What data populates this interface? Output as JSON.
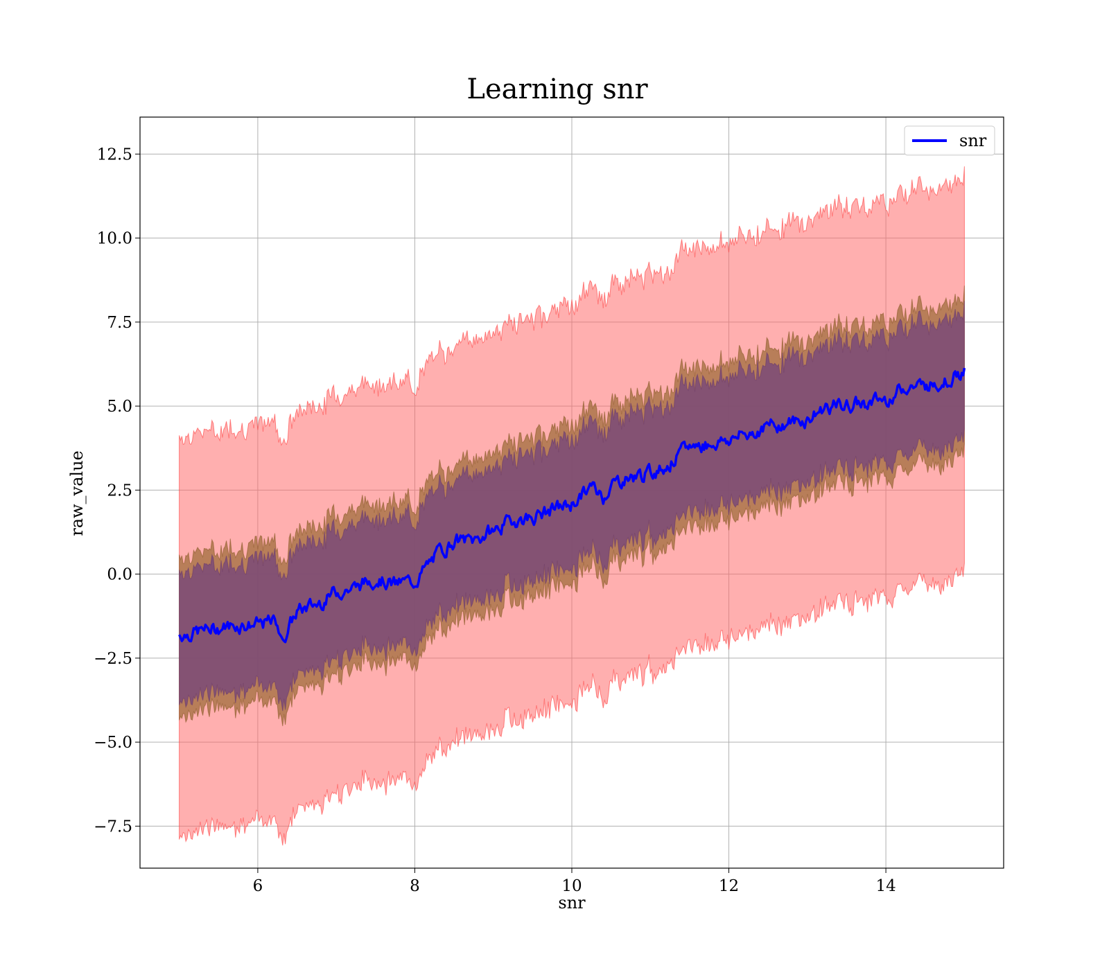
{
  "chart_data": {
    "type": "line",
    "title": "Learning snr",
    "xlabel": "snr",
    "ylabel": "raw_value",
    "xlim": [
      4.5,
      15.5
    ],
    "ylim": [
      -8.75,
      13.6
    ],
    "xticks": [
      6,
      8,
      10,
      12,
      14
    ],
    "yticks": [
      -7.5,
      -5.0,
      -2.5,
      0.0,
      2.5,
      5.0,
      7.5,
      10.0,
      12.5
    ],
    "xtick_labels": [
      "6",
      "8",
      "10",
      "12",
      "14"
    ],
    "ytick_labels": [
      "−7.5",
      "−5.0",
      "−2.5",
      "0.0",
      "2.5",
      "5.0",
      "7.5",
      "10.0",
      "12.5"
    ],
    "grid": true,
    "legend": {
      "position": "top-right",
      "entries": [
        "snr"
      ]
    },
    "colors": {
      "line": "#0000ff",
      "band_outer": "#ff6666",
      "band_middle": "#a06e3c",
      "band_inner": "#7a4a78",
      "grid": "#b0b0b0"
    },
    "series": [
      {
        "name": "snr",
        "x": [
          5.0,
          5.25,
          5.5,
          5.75,
          6.0,
          6.25,
          6.3,
          6.5,
          6.75,
          7.0,
          7.25,
          7.5,
          7.75,
          8.0,
          8.25,
          8.5,
          8.75,
          9.0,
          9.25,
          9.5,
          9.75,
          10.0,
          10.25,
          10.4,
          10.5,
          10.75,
          11.0,
          11.25,
          11.5,
          11.75,
          12.0,
          12.25,
          12.5,
          12.75,
          13.0,
          13.25,
          13.5,
          13.75,
          14.0,
          14.25,
          14.5,
          14.75,
          15.0
        ],
        "values": [
          -1.8,
          -1.7,
          -1.6,
          -1.5,
          -1.5,
          -1.4,
          -2.0,
          -1.1,
          -0.9,
          -0.5,
          -0.4,
          -0.1,
          -0.3,
          -0.2,
          0.5,
          1.0,
          1.0,
          1.3,
          1.6,
          1.7,
          1.9,
          2.1,
          2.6,
          2.3,
          2.7,
          2.9,
          3.0,
          3.3,
          3.8,
          3.9,
          4.0,
          4.2,
          4.4,
          4.5,
          4.6,
          5.0,
          5.0,
          5.1,
          5.2,
          5.6,
          5.6,
          5.8,
          6.0
        ]
      }
    ],
    "bands": [
      {
        "name": "outer",
        "lower_offset": -5.9,
        "upper_offset": 5.9
      },
      {
        "name": "middle",
        "lower_offset": -2.35,
        "upper_offset": 2.35
      },
      {
        "name": "inner",
        "lower_offset": -1.9,
        "upper_offset": 1.9
      }
    ]
  }
}
